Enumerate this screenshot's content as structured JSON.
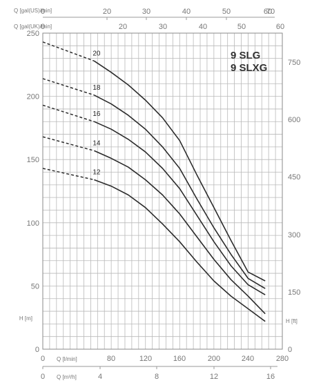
{
  "chart_data": {
    "type": "line",
    "title_lines": [
      "9 SLG",
      "9 SLXG"
    ],
    "grid": true,
    "left_axis": {
      "label": "H [m]",
      "range": [
        0,
        250
      ],
      "ticks": [
        "0",
        "50",
        "100",
        "150",
        "200",
        "250"
      ]
    },
    "right_axis": {
      "label": "H [ft]",
      "ticks": [
        "0",
        "150",
        "300",
        "450",
        "600",
        "750"
      ]
    },
    "bottom_axes": [
      {
        "label": "Q [l/min]",
        "range": [
          0,
          280
        ],
        "ticks": [
          "0",
          "80",
          "120",
          "160",
          "200",
          "240",
          "280"
        ]
      },
      {
        "label": "Q [m³/h]",
        "range": [
          0,
          16.8
        ],
        "ticks": [
          "0",
          "4",
          "8",
          "12",
          "16"
        ]
      }
    ],
    "top_axes": [
      {
        "label": "Q [gal(US)/min]",
        "ticks": [
          "0",
          "20",
          "30",
          "40",
          "50",
          "60",
          "70"
        ]
      },
      {
        "label": "Q [gal(UK)/min]",
        "ticks": [
          "0",
          "20",
          "30",
          "40",
          "50",
          "60"
        ]
      }
    ],
    "series": [
      {
        "name": "20",
        "dashed": {
          "x": [
            0,
            60
          ],
          "y": [
            243,
            228
          ]
        },
        "x": [
          60,
          80,
          100,
          120,
          140,
          160,
          180,
          200,
          220,
          240,
          260
        ],
        "y": [
          228,
          219,
          209,
          197,
          183,
          165,
          138,
          112,
          86,
          61,
          54
        ]
      },
      {
        "name": "18",
        "dashed": {
          "x": [
            0,
            60
          ],
          "y": [
            214,
            201
          ]
        },
        "x": [
          60,
          80,
          100,
          120,
          140,
          160,
          180,
          200,
          220,
          240,
          260
        ],
        "y": [
          201,
          194,
          185,
          174,
          160,
          143,
          119,
          96,
          75,
          56,
          48
        ]
      },
      {
        "name": "16",
        "dashed": {
          "x": [
            0,
            60
          ],
          "y": [
            193,
            180
          ]
        },
        "x": [
          60,
          80,
          100,
          120,
          140,
          160,
          180,
          200,
          220,
          240,
          260
        ],
        "y": [
          180,
          174,
          166,
          156,
          143,
          127,
          106,
          85,
          66,
          51,
          43
        ]
      },
      {
        "name": "14",
        "dashed": {
          "x": [
            0,
            60
          ],
          "y": [
            168,
            157
          ]
        },
        "x": [
          60,
          80,
          100,
          120,
          140,
          160,
          180,
          200,
          220,
          240,
          260
        ],
        "y": [
          157,
          151,
          144,
          134,
          122,
          107,
          89,
          71,
          55,
          42,
          28
        ]
      },
      {
        "name": "12",
        "dashed": {
          "x": [
            0,
            60
          ],
          "y": [
            143,
            134
          ]
        },
        "x": [
          60,
          80,
          100,
          120,
          140,
          160,
          180,
          200,
          220,
          240,
          260
        ],
        "y": [
          134,
          129,
          122,
          112,
          99,
          85,
          69,
          54,
          42,
          32,
          22
        ]
      }
    ]
  }
}
